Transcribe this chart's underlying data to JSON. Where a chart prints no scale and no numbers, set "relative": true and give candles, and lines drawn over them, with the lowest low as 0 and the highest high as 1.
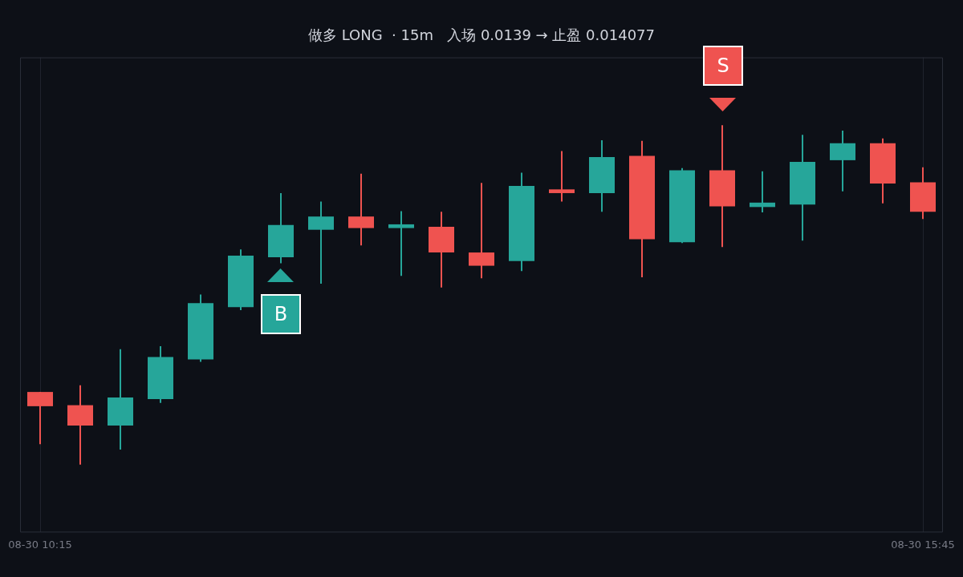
{
  "chart_data": {
    "type": "candlestick",
    "relative": true,
    "title": "做多 LONG  · 15m   入场 0.0139 → 止盈 0.014077",
    "categories": [
      "08-30 10:15",
      null,
      null,
      null,
      null,
      null,
      null,
      null,
      null,
      null,
      null,
      null,
      null,
      null,
      null,
      null,
      null,
      null,
      null,
      null,
      null,
      null,
      "08-30 15:45"
    ],
    "ohlc": [
      [
        0.214,
        0.214,
        0.06,
        0.172
      ],
      [
        0.175,
        0.234,
        0,
        0.115
      ],
      [
        0.115,
        0.34,
        0.044,
        0.198
      ],
      [
        0.193,
        0.349,
        0.182,
        0.317
      ],
      [
        0.31,
        0.501,
        0.303,
        0.476
      ],
      [
        0.464,
        0.634,
        0.455,
        0.616
      ],
      [
        0.611,
        0.8,
        0.593,
        0.706
      ],
      [
        0.692,
        0.775,
        0.533,
        0.731
      ],
      [
        0.731,
        0.857,
        0.646,
        0.697
      ],
      [
        0.697,
        0.747,
        0.556,
        0.708
      ],
      [
        0.701,
        0.745,
        0.522,
        0.625
      ],
      [
        0.625,
        0.83,
        0.549,
        0.586
      ],
      [
        0.6,
        0.86,
        0.57,
        0.821
      ],
      [
        0.811,
        0.924,
        0.775,
        0.8
      ],
      [
        0.8,
        0.956,
        0.745,
        0.906
      ],
      [
        0.91,
        0.954,
        0.552,
        0.664
      ],
      [
        0.655,
        0.874,
        0.653,
        0.867
      ],
      [
        0.867,
        1,
        0.641,
        0.761
      ],
      [
        0.759,
        0.864,
        0.743,
        0.772
      ],
      [
        0.766,
        0.972,
        0.66,
        0.892
      ],
      [
        0.897,
        0.984,
        0.805,
        0.947
      ],
      [
        0.947,
        0.961,
        0.77,
        0.828
      ],
      [
        0.832,
        0.876,
        0.724,
        0.745
      ]
    ],
    "colors": [
      "#ef5350",
      "#ef5350",
      "#26a69a",
      "#26a69a",
      "#26a69a",
      "#26a69a",
      "#26a69a",
      "#26a69a",
      "#ef5350",
      "#26a69a",
      "#ef5350",
      "#ef5350",
      "#26a69a",
      "#ef5350",
      "#26a69a",
      "#ef5350",
      "#26a69a",
      "#ef5350",
      "#26a69a",
      "#26a69a",
      "#26a69a",
      "#ef5350",
      "#ef5350"
    ],
    "grid": "x",
    "legend": false,
    "annotations": [
      "B",
      "S"
    ]
  }
}
